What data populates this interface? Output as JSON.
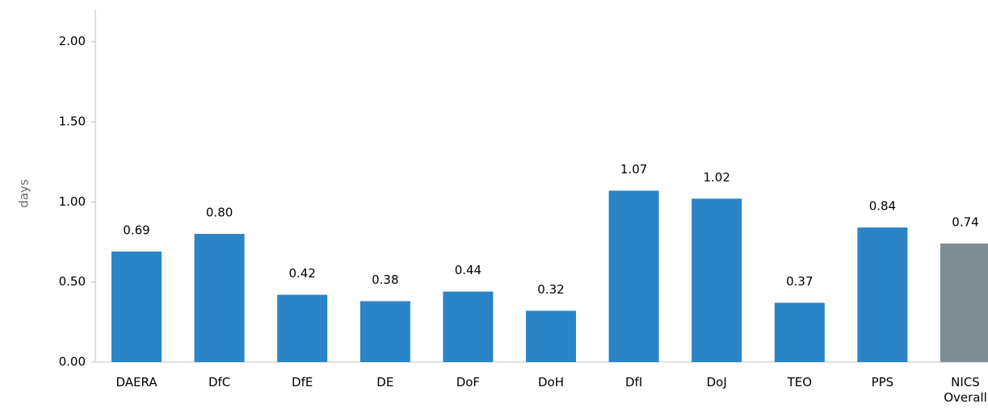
{
  "chart_data": {
    "type": "bar",
    "y_label": "days",
    "categories": [
      "DAERA",
      "DfC",
      "DfE",
      "DE",
      "DoF",
      "DoH",
      "DfI",
      "DoJ",
      "TEO",
      "PPS",
      "NICS Overall"
    ],
    "values": [
      0.69,
      0.8,
      0.42,
      0.38,
      0.44,
      0.32,
      1.07,
      1.02,
      0.37,
      0.84,
      0.74
    ],
    "value_labels": [
      "0.69",
      "0.80",
      "0.42",
      "0.38",
      "0.44",
      "0.32",
      "1.07",
      "1.02",
      "0.37",
      "0.84",
      "0.74"
    ],
    "colors": [
      "#2a84c6",
      "#2a84c6",
      "#2a84c6",
      "#2a84c6",
      "#2a84c6",
      "#2a84c6",
      "#2a84c6",
      "#2a84c6",
      "#2a84c6",
      "#2a84c6",
      "#7f8c93"
    ],
    "ylim": [
      0,
      2.2
    ],
    "yticks": [
      {
        "value": 0,
        "label": "0.00"
      },
      {
        "value": 0.5,
        "label": "0.50"
      },
      {
        "value": 1,
        "label": "1.00"
      },
      {
        "value": 1.5,
        "label": "1.50"
      },
      {
        "value": 2,
        "label": "2.00"
      }
    ],
    "grid": false
  }
}
